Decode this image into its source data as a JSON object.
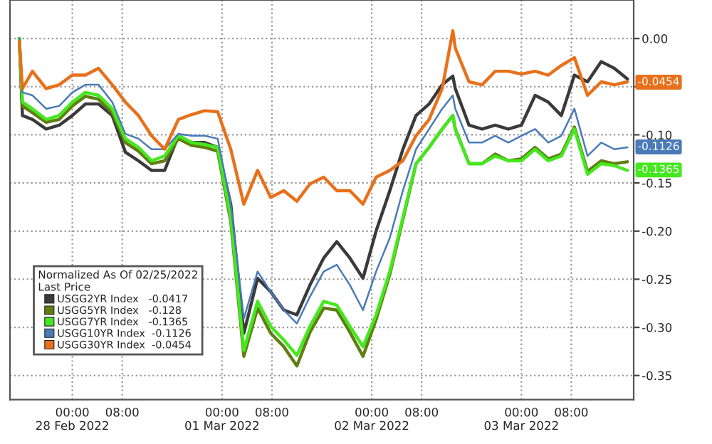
{
  "chart_data": {
    "type": "line",
    "x": [
      "2022-02-27T15:30",
      "2022-02-27T16:00",
      "2022-02-27T17:36",
      "2022-02-27T19:48",
      "2022-02-27T21:54",
      "2022-02-28T00:00",
      "2022-02-28T02:06",
      "2022-02-28T04:12",
      "2022-02-28T06:24",
      "2022-02-28T08:30",
      "2022-02-28T10:36",
      "2022-02-28T12:42",
      "2022-02-28T14:48",
      "2022-02-28T17:00",
      "2022-02-28T19:06",
      "2022-02-28T21:12",
      "2022-02-28T23:18",
      "2022-03-01T01:24",
      "2022-03-01T03:30",
      "2022-03-01T05:42",
      "2022-03-01T07:48",
      "2022-03-01T09:54",
      "2022-03-01T12:00",
      "2022-03-01T14:06",
      "2022-03-01T16:18",
      "2022-03-01T18:24",
      "2022-03-01T20:30",
      "2022-03-01T22:36",
      "2022-03-02T00:42",
      "2022-03-02T02:54",
      "2022-03-02T05:00",
      "2022-03-02T07:06",
      "2022-03-02T09:12",
      "2022-03-02T11:18",
      "2022-03-02T13:00",
      "2022-03-02T13:24",
      "2022-03-02T15:36",
      "2022-03-02T17:42",
      "2022-03-02T19:48",
      "2022-03-02T21:54",
      "2022-03-03T00:00",
      "2022-03-03T02:12",
      "2022-03-03T04:18",
      "2022-03-03T06:24",
      "2022-03-03T08:30",
      "2022-03-03T10:36",
      "2022-03-03T12:48",
      "2022-03-03T14:54",
      "2022-03-03T17:00"
    ],
    "series": [
      {
        "name": "USGG2YR Index   -0.0417",
        "color": "#3a3a3a",
        "values": [
          0,
          -0.08,
          -0.084,
          -0.094,
          -0.09,
          -0.08,
          -0.068,
          -0.068,
          -0.08,
          -0.118,
          -0.127,
          -0.137,
          -0.137,
          -0.101,
          -0.108,
          -0.108,
          -0.113,
          -0.172,
          -0.306,
          -0.249,
          -0.263,
          -0.282,
          -0.287,
          -0.256,
          -0.228,
          -0.211,
          -0.228,
          -0.249,
          -0.2,
          -0.158,
          -0.115,
          -0.08,
          -0.068,
          -0.048,
          -0.039,
          -0.052,
          -0.09,
          -0.094,
          -0.09,
          -0.094,
          -0.09,
          -0.059,
          -0.066,
          -0.08,
          -0.038,
          -0.045,
          -0.024,
          -0.031,
          -0.042
        ]
      },
      {
        "name": "USGG5YR Index   -0.128",
        "color": "#5f7f12",
        "values": [
          0,
          -0.07,
          -0.077,
          -0.087,
          -0.084,
          -0.07,
          -0.06,
          -0.063,
          -0.077,
          -0.108,
          -0.117,
          -0.13,
          -0.127,
          -0.104,
          -0.111,
          -0.113,
          -0.117,
          -0.19,
          -0.33,
          -0.28,
          -0.306,
          -0.32,
          -0.34,
          -0.305,
          -0.28,
          -0.282,
          -0.305,
          -0.33,
          -0.292,
          -0.245,
          -0.188,
          -0.13,
          -0.113,
          -0.094,
          -0.08,
          -0.094,
          -0.13,
          -0.13,
          -0.12,
          -0.127,
          -0.125,
          -0.113,
          -0.125,
          -0.12,
          -0.092,
          -0.138,
          -0.127,
          -0.13,
          -0.128
        ]
      },
      {
        "name": "USGG7YR Index   -0.1365",
        "color": "#44e81e",
        "values": [
          0,
          -0.066,
          -0.073,
          -0.084,
          -0.08,
          -0.066,
          -0.056,
          -0.059,
          -0.073,
          -0.104,
          -0.113,
          -0.127,
          -0.122,
          -0.101,
          -0.108,
          -0.11,
          -0.113,
          -0.186,
          -0.324,
          -0.273,
          -0.299,
          -0.313,
          -0.329,
          -0.299,
          -0.273,
          -0.277,
          -0.299,
          -0.32,
          -0.287,
          -0.242,
          -0.186,
          -0.13,
          -0.113,
          -0.094,
          -0.08,
          -0.094,
          -0.13,
          -0.13,
          -0.122,
          -0.127,
          -0.127,
          -0.115,
          -0.127,
          -0.122,
          -0.094,
          -0.141,
          -0.13,
          -0.132,
          -0.137
        ]
      },
      {
        "name": "USGG10YR Index  -0.1126",
        "color": "#4a7ab8",
        "values": [
          0,
          -0.056,
          -0.059,
          -0.073,
          -0.07,
          -0.056,
          -0.048,
          -0.048,
          -0.066,
          -0.099,
          -0.104,
          -0.115,
          -0.115,
          -0.099,
          -0.101,
          -0.101,
          -0.104,
          -0.172,
          -0.291,
          -0.242,
          -0.263,
          -0.282,
          -0.296,
          -0.268,
          -0.242,
          -0.235,
          -0.256,
          -0.282,
          -0.242,
          -0.207,
          -0.158,
          -0.115,
          -0.094,
          -0.073,
          -0.059,
          -0.073,
          -0.108,
          -0.108,
          -0.101,
          -0.108,
          -0.101,
          -0.094,
          -0.108,
          -0.101,
          -0.073,
          -0.122,
          -0.108,
          -0.115,
          -0.113
        ]
      },
      {
        "name": "USGG30YR Index  -0.0454",
        "color": "#e8701a",
        "values": [
          -0.003,
          -0.052,
          -0.034,
          -0.052,
          -0.048,
          -0.038,
          -0.038,
          -0.031,
          -0.048,
          -0.066,
          -0.08,
          -0.101,
          -0.115,
          -0.084,
          -0.079,
          -0.075,
          -0.076,
          -0.115,
          -0.172,
          -0.137,
          -0.165,
          -0.158,
          -0.169,
          -0.151,
          -0.144,
          -0.158,
          -0.158,
          -0.172,
          -0.144,
          -0.137,
          -0.127,
          -0.101,
          -0.084,
          -0.052,
          0.008,
          -0.01,
          -0.045,
          -0.048,
          -0.034,
          -0.034,
          -0.037,
          -0.034,
          -0.038,
          -0.028,
          -0.02,
          -0.059,
          -0.045,
          -0.048,
          -0.045
        ]
      }
    ],
    "legend_title": "Normalized As Of 02/25/2022\nLast Price",
    "legend": "bottom left",
    "xlim": [
      "2022-02-27T14:00",
      "2022-03-03T18:00"
    ],
    "xticks": [
      {
        "value": "2022-02-28T00:00",
        "label": "00:00\n28 Feb 2022"
      },
      {
        "value": "2022-02-28T08:00",
        "label": "08:00"
      },
      {
        "value": "2022-03-01T00:00",
        "label": "00:00\n01 Mar 2022"
      },
      {
        "value": "2022-03-01T08:00",
        "label": "08:00"
      },
      {
        "value": "2022-03-02T00:00",
        "label": "00:00\n02 Mar 2022"
      },
      {
        "value": "2022-03-02T08:00",
        "label": "08:00"
      },
      {
        "value": "2022-03-03T00:00",
        "label": "00:00\n03 Mar 2022"
      },
      {
        "value": "2022-03-03T08:00",
        "label": "08:00"
      }
    ],
    "ylim": [
      -0.375,
      0.04
    ],
    "yticks": [
      {
        "value": 0,
        "label": "0.00"
      },
      {
        "value": -0.05,
        "label": null
      },
      {
        "value": -0.1,
        "label": "-0.10"
      },
      {
        "value": -0.15,
        "label": "-0.15"
      },
      {
        "value": -0.2,
        "label": "-0.20"
      },
      {
        "value": -0.25,
        "label": "-0.25"
      },
      {
        "value": -0.3,
        "label": "-0.30"
      },
      {
        "value": -0.35,
        "label": "-0.35"
      }
    ],
    "annotations": [
      {
        "text": "-0.0454",
        "x": "2022-03-03T17:00",
        "y": -0.0454
      },
      {
        "text": "-0.1126",
        "x": "2022-03-03T17:00",
        "y": -0.1126
      },
      {
        "text": "-0.1365",
        "x": "2022-03-03T17:00",
        "y": -0.1365
      }
    ],
    "grid": true,
    "line_style": "solid",
    "marker": "none"
  }
}
